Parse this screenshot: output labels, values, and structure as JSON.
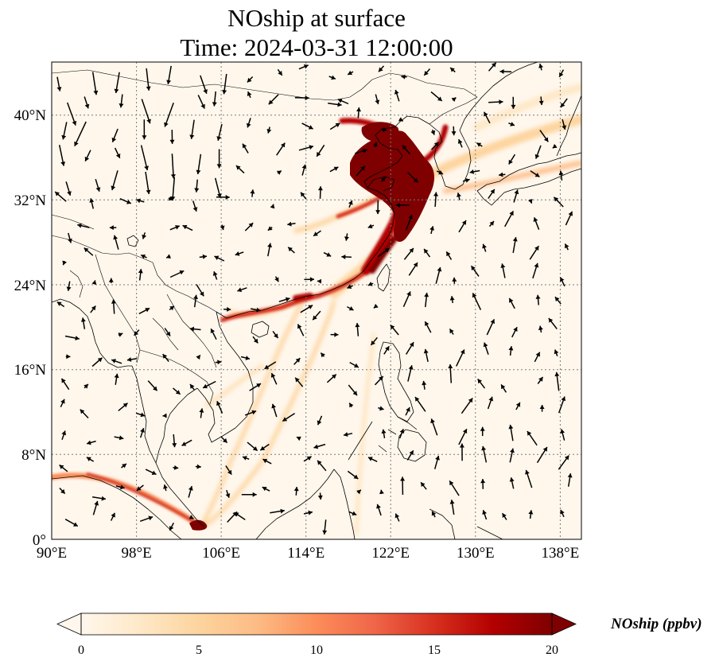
{
  "figure": {
    "title_line1": "NOship at surface",
    "title_line2": "Time: 2024-03-31 12:00:00"
  },
  "map": {
    "lon_range": [
      90,
      140
    ],
    "lat_range": [
      0,
      45
    ],
    "lon_ticks": [
      {
        "value": 90,
        "label": "90°E"
      },
      {
        "value": 98,
        "label": "98°E"
      },
      {
        "value": 106,
        "label": "106°E"
      },
      {
        "value": 114,
        "label": "114°E"
      },
      {
        "value": 122,
        "label": "122°E"
      },
      {
        "value": 130,
        "label": "130°E"
      },
      {
        "value": 138,
        "label": "138°E"
      }
    ],
    "lat_ticks": [
      {
        "value": 0,
        "label": "0°"
      },
      {
        "value": 8,
        "label": "8°N"
      },
      {
        "value": 16,
        "label": "16°N"
      },
      {
        "value": 24,
        "label": "24°N"
      },
      {
        "value": 32,
        "label": "32°N"
      },
      {
        "value": 40,
        "label": "40°N"
      }
    ],
    "gridlines": "dotted",
    "field": "NOship",
    "background_color": "#fff7ec",
    "colormap": [
      "#fff7ec",
      "#fee8c8",
      "#fdd49e",
      "#fdbb84",
      "#fc8d59",
      "#ef6548",
      "#d7301f",
      "#b30000",
      "#7f0000"
    ]
  },
  "colorbar": {
    "label": "NOship (ppbv)",
    "min": 0,
    "max": 20,
    "extend": "both",
    "ticks": [
      {
        "value": 0,
        "label": "0"
      },
      {
        "value": 5,
        "label": "5"
      },
      {
        "value": 10,
        "label": "10"
      },
      {
        "value": 15,
        "label": "15"
      },
      {
        "value": 20,
        "label": "20"
      }
    ]
  }
}
